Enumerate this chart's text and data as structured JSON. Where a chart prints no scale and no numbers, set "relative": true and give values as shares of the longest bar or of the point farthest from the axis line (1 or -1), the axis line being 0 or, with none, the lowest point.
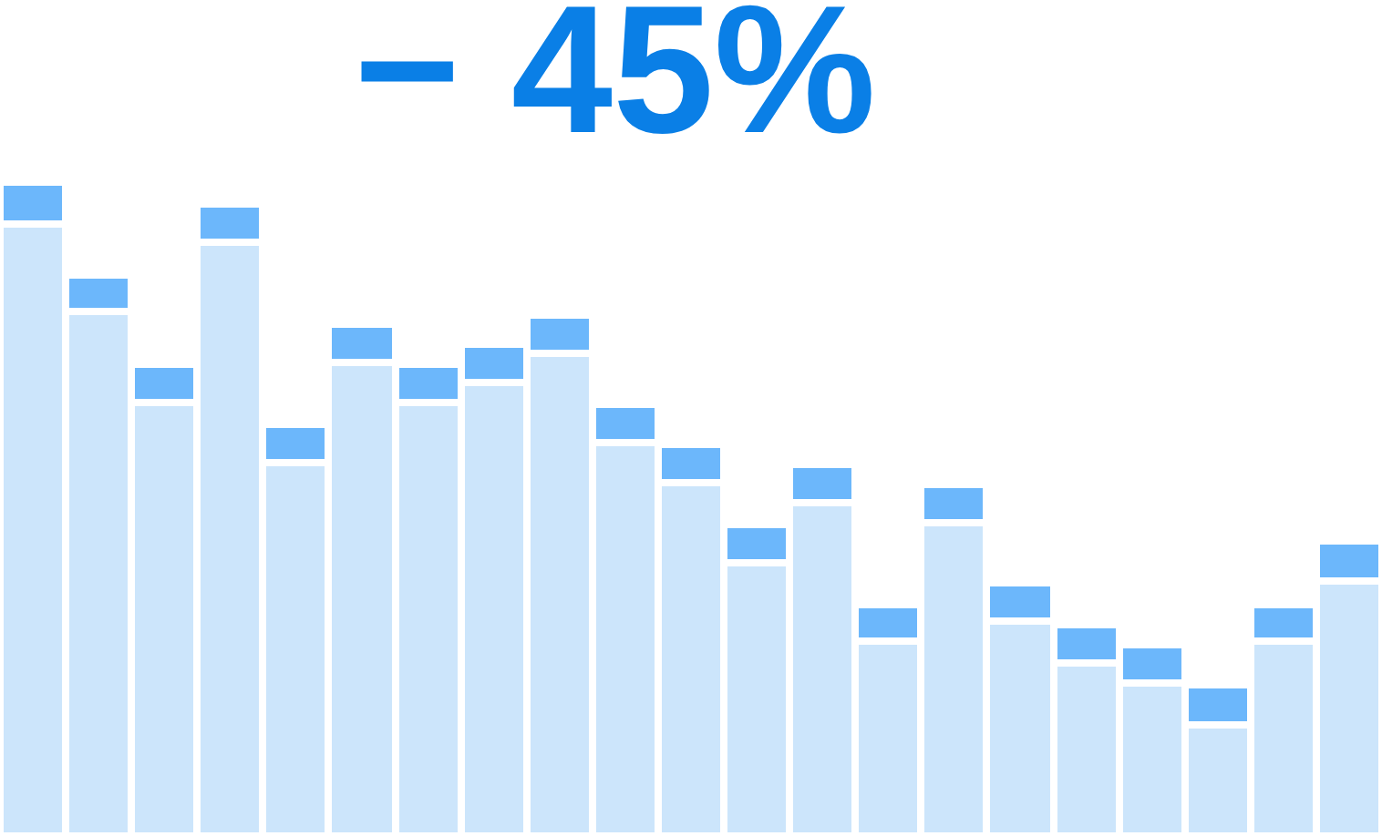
{
  "chart_data": {
    "type": "bar",
    "title": "− 45%",
    "relative": true,
    "stacked": true,
    "categories": [
      null,
      null,
      null,
      null,
      null,
      null,
      null,
      null,
      null,
      null,
      null,
      null,
      null,
      null,
      null,
      null,
      null,
      null,
      null,
      null,
      null
    ],
    "series": [
      {
        "color": "#cce5fb",
        "values": [
          0.936,
          0.801,
          0.664,
          0.908,
          0.571,
          0.723,
          0.664,
          0.695,
          0.739,
          0.602,
          0.541,
          0.417,
          0.51,
          0.297,
          0.479,
          0.328,
          0.266,
          0.235,
          0.171,
          0.297,
          0.389
        ]
      },
      {
        "color": "#6cb7fb",
        "values": [
          0.064,
          0.058,
          0.058,
          0.058,
          0.058,
          0.061,
          0.058,
          0.058,
          0.059,
          0.058,
          0.058,
          0.058,
          0.058,
          0.058,
          0.058,
          0.058,
          0.058,
          0.058,
          0.061,
          0.058,
          0.061
        ]
      }
    ]
  }
}
